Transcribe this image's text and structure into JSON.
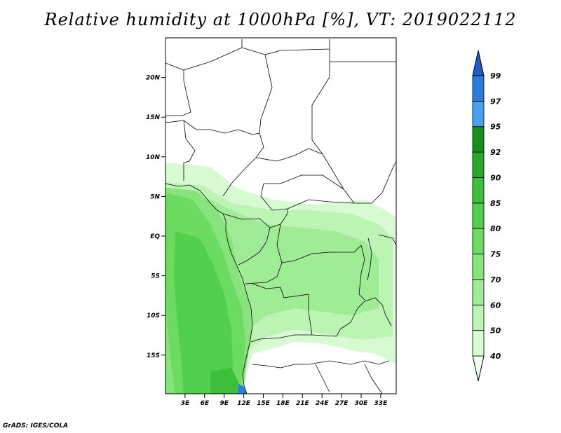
{
  "title": "Relative humidity at 1000hPa [%], VT: 2019022112",
  "credit": "GrADS: IGES/COLA",
  "map": {
    "lat_ticks": [
      {
        "label": "20N",
        "value": 20
      },
      {
        "label": "15N",
        "value": 15
      },
      {
        "label": "10N",
        "value": 10
      },
      {
        "label": "5N",
        "value": 5
      },
      {
        "label": "EQ",
        "value": 0
      },
      {
        "label": "5S",
        "value": -5
      },
      {
        "label": "10S",
        "value": -10
      },
      {
        "label": "15S",
        "value": -15
      }
    ],
    "lon_ticks": [
      {
        "label": "3E",
        "value": 3
      },
      {
        "label": "6E",
        "value": 6
      },
      {
        "label": "9E",
        "value": 9
      },
      {
        "label": "12E",
        "value": 12
      },
      {
        "label": "15E",
        "value": 15
      },
      {
        "label": "18E",
        "value": 18
      },
      {
        "label": "21E",
        "value": 21
      },
      {
        "label": "24E",
        "value": 24
      },
      {
        "label": "27E",
        "value": 27
      },
      {
        "label": "30E",
        "value": 30
      },
      {
        "label": "33E",
        "value": 33
      }
    ]
  },
  "colorbar": {
    "levels": [
      "40",
      "50",
      "60",
      "70",
      "75",
      "80",
      "85",
      "90",
      "92",
      "95",
      "97",
      "99"
    ],
    "colors": [
      "#f0fff0",
      "#d7fad2",
      "#bcf4b4",
      "#a0eb96",
      "#86e47a",
      "#6cdb62",
      "#52cf4c",
      "#3cc03a",
      "#2aa62b",
      "#17901c",
      "#4aa0f0",
      "#2c7ce0",
      "#1e5cc8"
    ]
  }
}
